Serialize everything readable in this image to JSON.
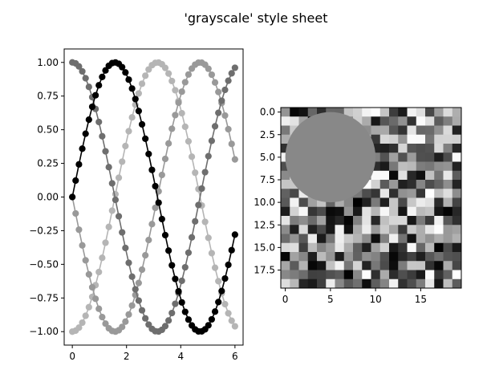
{
  "figure": {
    "title": "'grayscale' style sheet"
  },
  "chart_data": [
    {
      "type": "line",
      "title": "",
      "xlabel": "",
      "ylabel": "",
      "xlim": [
        -0.3,
        6.3
      ],
      "ylim": [
        -1.1,
        1.1
      ],
      "xticks": [
        "0",
        "2",
        "4",
        "6"
      ],
      "yticks": [
        "-1.00",
        "-0.75",
        "-0.50",
        "-0.25",
        "0.00",
        "0.25",
        "0.50",
        "0.75",
        "1.00"
      ],
      "x_range": [
        0,
        6.0
      ],
      "num_points": 50,
      "series": [
        {
          "function": "sin(x)",
          "phase_shift": 0.0,
          "color": "#000000"
        },
        {
          "function": "sin(x + pi/2)",
          "phase_shift": 1.5708,
          "color": "#6e6e6e"
        },
        {
          "function": "sin(x + pi)",
          "phase_shift": 3.1416,
          "color": "#999999"
        },
        {
          "function": "sin(x + 3pi/2)",
          "phase_shift": 4.7124,
          "color": "#b5b5b5"
        }
      ],
      "marker": "circle",
      "grid": false,
      "legend": "none"
    },
    {
      "type": "heatmap",
      "title": "",
      "size": [
        20,
        20
      ],
      "xticks": [
        "0",
        "5",
        "10",
        "15"
      ],
      "yticks": [
        "0.0",
        "2.5",
        "5.0",
        "7.5",
        "10.0",
        "12.5",
        "15.0",
        "17.5"
      ],
      "colormap": "gray",
      "overlay_circle": {
        "center": [
          5,
          5
        ],
        "radius": 5,
        "color": "#888888"
      }
    }
  ]
}
